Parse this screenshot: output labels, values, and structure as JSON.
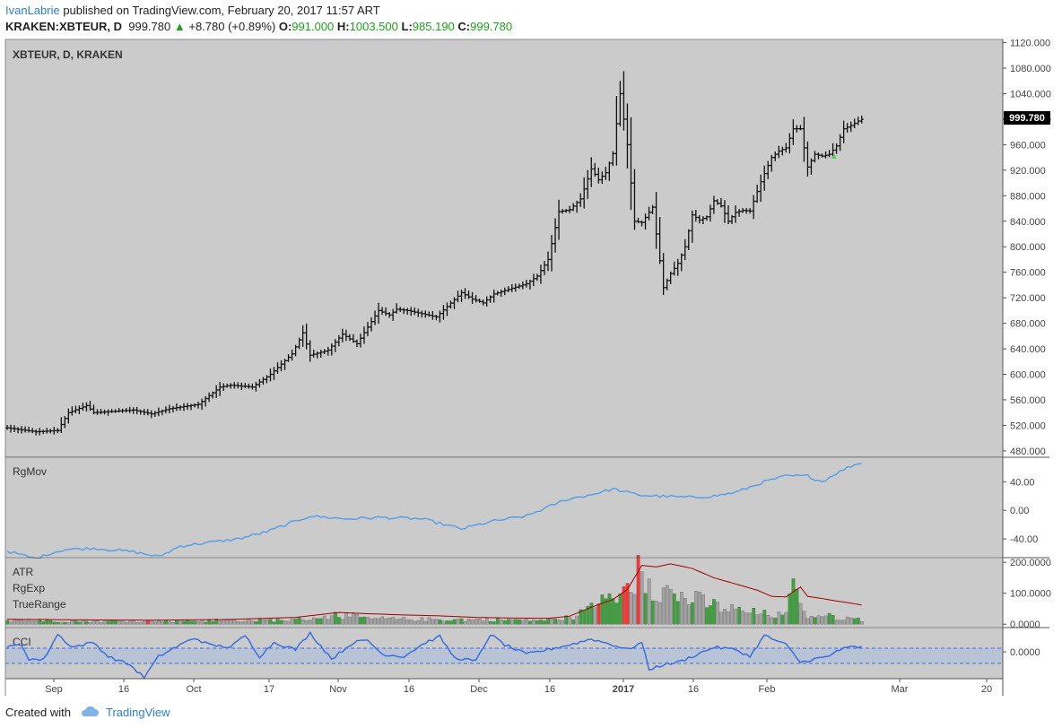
{
  "header": {
    "author": "IvanLabrie",
    "published": " published on TradingView.com, February 20, 2017 11:57 ART",
    "symbol": "KRAKEN:XBTEUR, D",
    "last": "999.780",
    "change": "+8.780 (+0.89%)",
    "o_label": "O:",
    "o": "991.000",
    "h_label": "H:",
    "h": "1003.500",
    "l_label": "L:",
    "l": "985.190",
    "c_label": "C:",
    "c": "999.780"
  },
  "footer": {
    "created_with": "Created with",
    "brand": "TradingView"
  },
  "colors": {
    "pane_bg": "#cbcbcb",
    "bar": "#111111",
    "rgmov": "#5aa0e8",
    "atr": "#a00000",
    "cci": "#3a6fe0",
    "green": "#3aa33a",
    "red": "#ff3333",
    "gray": "#a3a3a3",
    "price_tag": "#000000"
  },
  "chart_data": [
    {
      "type": "ohlc",
      "title": "XBTEUR, D, KRAKEN",
      "ylim": [
        470,
        1125
      ],
      "yticks": [
        "480.000",
        "520.000",
        "560.000",
        "600.000",
        "640.000",
        "680.000",
        "720.000",
        "760.000",
        "800.000",
        "840.000",
        "880.000",
        "920.000",
        "960.000",
        "1000.000",
        "1040.000",
        "1080.000",
        "1120.000"
      ],
      "last_price_label": "999.780",
      "x_ticks": [
        "Sep",
        "16",
        "Oct",
        "17",
        "Nov",
        "16",
        "Dec",
        "16",
        "2017",
        "16",
        "Feb",
        "Mar",
        "20"
      ],
      "keypoints": [
        [
          0,
          516
        ],
        [
          8,
          510
        ],
        [
          14,
          512
        ],
        [
          17,
          540
        ],
        [
          22,
          551
        ],
        [
          24,
          540
        ],
        [
          35,
          544
        ],
        [
          40,
          538
        ],
        [
          45,
          546
        ],
        [
          53,
          553
        ],
        [
          59,
          580
        ],
        [
          62,
          583
        ],
        [
          68,
          580
        ],
        [
          73,
          600
        ],
        [
          79,
          632
        ],
        [
          82,
          665
        ],
        [
          84,
          630
        ],
        [
          89,
          638
        ],
        [
          93,
          663
        ],
        [
          97,
          648
        ],
        [
          103,
          700
        ],
        [
          106,
          693
        ],
        [
          108,
          702
        ],
        [
          111,
          700
        ],
        [
          119,
          690
        ],
        [
          126,
          728
        ],
        [
          129,
          718
        ],
        [
          132,
          712
        ],
        [
          135,
          726
        ],
        [
          144,
          742
        ],
        [
          147,
          754
        ],
        [
          150,
          780
        ],
        [
          153,
          855
        ],
        [
          156,
          858
        ],
        [
          159,
          875
        ],
        [
          162,
          922
        ],
        [
          164,
          905
        ],
        [
          166,
          916
        ],
        [
          168,
          946
        ],
        [
          170,
          1040
        ],
        [
          172,
          960
        ],
        [
          174,
          840
        ],
        [
          176,
          838
        ],
        [
          179,
          862
        ],
        [
          182,
          736
        ],
        [
          184,
          758
        ],
        [
          186,
          774
        ],
        [
          188,
          800
        ],
        [
          190,
          850
        ],
        [
          192,
          842
        ],
        [
          194,
          847
        ],
        [
          196,
          872
        ],
        [
          198,
          864
        ],
        [
          200,
          840
        ],
        [
          202,
          854
        ],
        [
          204,
          857
        ],
        [
          206,
          856
        ],
        [
          209,
          902
        ],
        [
          212,
          940
        ],
        [
          214,
          950
        ],
        [
          216,
          955
        ],
        [
          218,
          985
        ],
        [
          220,
          985
        ],
        [
          222,
          925
        ],
        [
          224,
          945
        ],
        [
          226,
          942
        ],
        [
          228,
          945
        ],
        [
          230,
          958
        ],
        [
          232,
          985
        ],
        [
          234,
          990
        ],
        [
          236,
          997
        ],
        [
          237,
          999.78
        ]
      ]
    },
    {
      "type": "line",
      "title": "RgMov",
      "ylim": [
        -65,
        73
      ],
      "yticks": [
        "40.00",
        "0.00",
        "-40.00"
      ],
      "keypoints": [
        [
          0,
          -57
        ],
        [
          8,
          -68
        ],
        [
          12,
          -60
        ],
        [
          16,
          -55
        ],
        [
          24,
          -53
        ],
        [
          35,
          -58
        ],
        [
          42,
          -65
        ],
        [
          48,
          -50
        ],
        [
          56,
          -45
        ],
        [
          64,
          -40
        ],
        [
          72,
          -30
        ],
        [
          84,
          -8
        ],
        [
          94,
          -12
        ],
        [
          104,
          -10
        ],
        [
          115,
          -12
        ],
        [
          126,
          -26
        ],
        [
          135,
          -15
        ],
        [
          144,
          -8
        ],
        [
          155,
          15
        ],
        [
          162,
          22
        ],
        [
          168,
          30
        ],
        [
          172,
          25
        ],
        [
          176,
          21
        ],
        [
          180,
          20
        ],
        [
          190,
          18
        ],
        [
          196,
          20
        ],
        [
          202,
          25
        ],
        [
          210,
          40
        ],
        [
          216,
          48
        ],
        [
          222,
          48
        ],
        [
          226,
          40
        ],
        [
          230,
          52
        ],
        [
          234,
          62
        ],
        [
          237,
          67
        ]
      ]
    },
    {
      "type": "bar+line",
      "title": "ATR RgExp TrueRange",
      "ylim": [
        -8,
        212
      ],
      "yticks": [
        "200.0000",
        "100.0000",
        "0.0000"
      ],
      "atr_keypoints": [
        [
          0,
          16
        ],
        [
          20,
          14
        ],
        [
          40,
          13
        ],
        [
          60,
          15
        ],
        [
          80,
          22
        ],
        [
          92,
          38
        ],
        [
          100,
          34
        ],
        [
          110,
          30
        ],
        [
          120,
          27
        ],
        [
          130,
          22
        ],
        [
          140,
          20
        ],
        [
          150,
          19
        ],
        [
          156,
          26
        ],
        [
          162,
          55
        ],
        [
          168,
          80
        ],
        [
          172,
          112
        ],
        [
          176,
          190
        ],
        [
          180,
          185
        ],
        [
          184,
          195
        ],
        [
          190,
          180
        ],
        [
          196,
          150
        ],
        [
          202,
          130
        ],
        [
          208,
          110
        ],
        [
          212,
          90
        ],
        [
          216,
          88
        ],
        [
          218,
          105
        ],
        [
          220,
          120
        ],
        [
          222,
          90
        ],
        [
          226,
          83
        ],
        [
          230,
          75
        ],
        [
          234,
          68
        ],
        [
          237,
          62
        ]
      ],
      "tr_keypoints": [
        [
          0,
          14
        ],
        [
          20,
          10
        ],
        [
          40,
          10
        ],
        [
          60,
          12
        ],
        [
          80,
          14
        ],
        [
          92,
          30
        ],
        [
          100,
          18
        ],
        [
          110,
          16
        ],
        [
          120,
          15
        ],
        [
          130,
          15
        ],
        [
          140,
          14
        ],
        [
          150,
          13
        ],
        [
          156,
          22
        ],
        [
          162,
          50
        ],
        [
          168,
          90
        ],
        [
          172,
          115
        ],
        [
          176,
          190
        ],
        [
          180,
          120
        ],
        [
          184,
          98
        ],
        [
          190,
          80
        ],
        [
          196,
          60
        ],
        [
          202,
          45
        ],
        [
          208,
          35
        ],
        [
          212,
          30
        ],
        [
          216,
          28
        ],
        [
          218,
          115
        ],
        [
          220,
          80
        ],
        [
          222,
          25
        ],
        [
          226,
          28
        ],
        [
          230,
          22
        ],
        [
          234,
          18
        ],
        [
          237,
          15
        ]
      ]
    },
    {
      "type": "line",
      "title": "CCI",
      "ylim": [
        -230,
        200
      ],
      "yticks": [
        "0.0000"
      ],
      "bands": [
        100,
        -100
      ],
      "keypoints": [
        [
          0,
          40
        ],
        [
          4,
          60
        ],
        [
          6,
          -60
        ],
        [
          10,
          -70
        ],
        [
          14,
          150
        ],
        [
          18,
          40
        ],
        [
          24,
          80
        ],
        [
          28,
          -40
        ],
        [
          34,
          -110
        ],
        [
          38,
          -220
        ],
        [
          42,
          -40
        ],
        [
          48,
          60
        ],
        [
          52,
          120
        ],
        [
          56,
          60
        ],
        [
          62,
          40
        ],
        [
          66,
          140
        ],
        [
          70,
          -40
        ],
        [
          74,
          80
        ],
        [
          80,
          20
        ],
        [
          84,
          160
        ],
        [
          90,
          -60
        ],
        [
          96,
          80
        ],
        [
          100,
          100
        ],
        [
          104,
          -20
        ],
        [
          110,
          -40
        ],
        [
          116,
          80
        ],
        [
          120,
          130
        ],
        [
          124,
          -50
        ],
        [
          130,
          -80
        ],
        [
          134,
          150
        ],
        [
          138,
          60
        ],
        [
          144,
          -20
        ],
        [
          150,
          20
        ],
        [
          156,
          60
        ],
        [
          162,
          110
        ],
        [
          168,
          60
        ],
        [
          172,
          20
        ],
        [
          176,
          80
        ],
        [
          178,
          -150
        ],
        [
          182,
          -110
        ],
        [
          186,
          -90
        ],
        [
          190,
          -40
        ],
        [
          196,
          40
        ],
        [
          202,
          20
        ],
        [
          206,
          -40
        ],
        [
          210,
          140
        ],
        [
          216,
          60
        ],
        [
          220,
          -90
        ],
        [
          224,
          -60
        ],
        [
          228,
          -40
        ],
        [
          230,
          10
        ],
        [
          234,
          40
        ],
        [
          237,
          40
        ]
      ]
    }
  ]
}
